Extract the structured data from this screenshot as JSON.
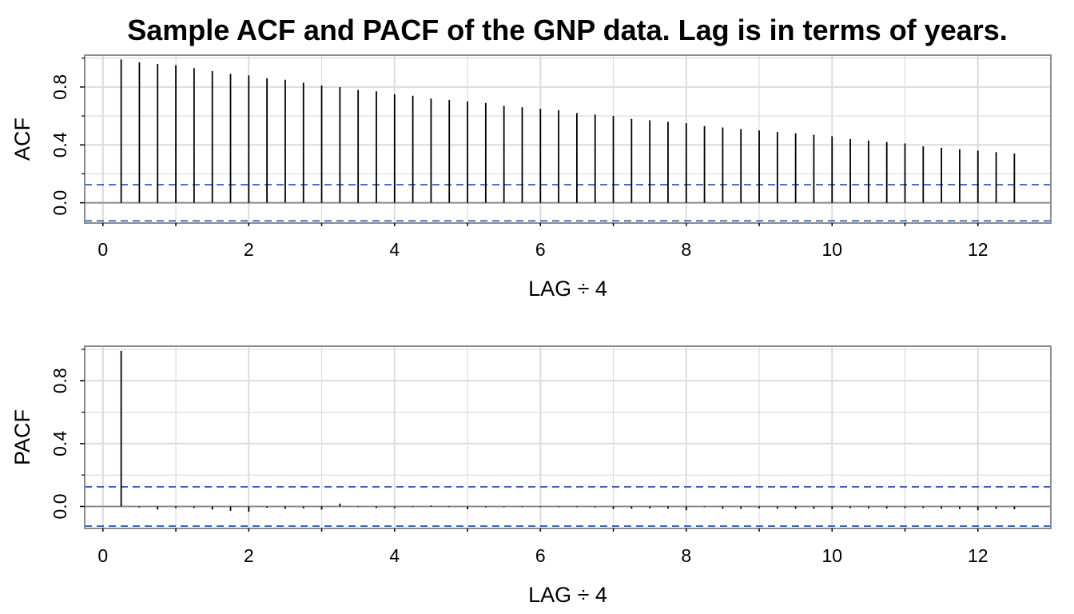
{
  "chart_data": {
    "title": "Sample ACF and PACF of the GNP data. Lag is in terms of years.",
    "panels": [
      {
        "key": "acf",
        "type": "bar",
        "ylabel": "ACF",
        "xlabel": "LAG ÷ 4",
        "xlim": [
          -0.25,
          13
        ],
        "ylim": [
          -0.14,
          1.02
        ],
        "xticks": [
          0,
          2,
          4,
          6,
          8,
          10,
          12
        ],
        "xtick_labels": [
          "0",
          "2",
          "4",
          "6",
          "8",
          "10",
          "12"
        ],
        "yticks": [
          0.0,
          0.4,
          0.8
        ],
        "ytick_labels": [
          "0.0",
          "0.4",
          "0.8"
        ],
        "conf_limit": 0.125,
        "grid": true,
        "x": [
          0.25,
          0.5,
          0.75,
          1.0,
          1.25,
          1.5,
          1.75,
          2.0,
          2.25,
          2.5,
          2.75,
          3.0,
          3.25,
          3.5,
          3.75,
          4.0,
          4.25,
          4.5,
          4.75,
          5.0,
          5.25,
          5.5,
          5.75,
          6.0,
          6.25,
          6.5,
          6.75,
          7.0,
          7.25,
          7.5,
          7.75,
          8.0,
          8.25,
          8.5,
          8.75,
          9.0,
          9.25,
          9.5,
          9.75,
          10.0,
          10.25,
          10.5,
          10.75,
          11.0,
          11.25,
          11.5,
          11.75,
          12.0,
          12.25,
          12.5
        ],
        "values": [
          0.99,
          0.97,
          0.96,
          0.95,
          0.93,
          0.91,
          0.89,
          0.88,
          0.86,
          0.85,
          0.83,
          0.81,
          0.8,
          0.78,
          0.77,
          0.75,
          0.74,
          0.72,
          0.71,
          0.7,
          0.69,
          0.67,
          0.66,
          0.65,
          0.64,
          0.62,
          0.61,
          0.6,
          0.58,
          0.57,
          0.56,
          0.55,
          0.53,
          0.52,
          0.51,
          0.5,
          0.49,
          0.48,
          0.47,
          0.46,
          0.44,
          0.43,
          0.42,
          0.41,
          0.39,
          0.38,
          0.37,
          0.36,
          0.35,
          0.34
        ]
      },
      {
        "key": "pacf",
        "type": "bar",
        "ylabel": "PACF",
        "xlabel": "LAG ÷ 4",
        "xlim": [
          -0.25,
          13
        ],
        "ylim": [
          -0.14,
          1.02
        ],
        "xticks": [
          0,
          2,
          4,
          6,
          8,
          10,
          12
        ],
        "xtick_labels": [
          "0",
          "2",
          "4",
          "6",
          "8",
          "10",
          "12"
        ],
        "yticks": [
          0.0,
          0.4,
          0.8
        ],
        "ytick_labels": [
          "0.0",
          "0.4",
          "0.8"
        ],
        "conf_limit": 0.125,
        "grid": true,
        "x": [
          0.25,
          0.5,
          0.75,
          1.0,
          1.25,
          1.5,
          1.75,
          2.0,
          2.25,
          2.5,
          2.75,
          3.0,
          3.25,
          3.5,
          3.75,
          4.0,
          4.25,
          4.5,
          4.75,
          5.0,
          5.25,
          5.5,
          5.75,
          6.0,
          6.25,
          6.5,
          6.75,
          7.0,
          7.25,
          7.5,
          7.75,
          8.0,
          8.25,
          8.5,
          8.75,
          9.0,
          9.25,
          9.5,
          9.75,
          10.0,
          10.25,
          10.5,
          10.75,
          11.0,
          11.25,
          11.5,
          11.75,
          12.0,
          12.25,
          12.5
        ],
        "values": [
          0.99,
          -0.006,
          -0.02,
          -0.01,
          -0.01,
          -0.02,
          -0.028,
          -0.034,
          -0.008,
          -0.015,
          -0.012,
          -0.02,
          0.018,
          -0.004,
          -0.01,
          -0.01,
          -0.004,
          0.006,
          -0.004,
          -0.018,
          -0.006,
          -0.004,
          -0.004,
          -0.004,
          -0.004,
          -0.004,
          -0.006,
          -0.016,
          -0.014,
          -0.012,
          -0.014,
          -0.024,
          -0.004,
          -0.014,
          -0.015,
          -0.012,
          -0.014,
          -0.014,
          -0.014,
          -0.016,
          -0.01,
          -0.012,
          -0.012,
          -0.01,
          -0.01,
          -0.014,
          -0.016,
          -0.024,
          -0.016,
          -0.018
        ]
      }
    ]
  },
  "colors": {
    "bar": "#000000",
    "zero_line": "#8c8c8c",
    "conf_line": "#2b5fbf",
    "grid": "#dcdcdc",
    "frame": "#8c8c8c",
    "tick": "#000000"
  }
}
